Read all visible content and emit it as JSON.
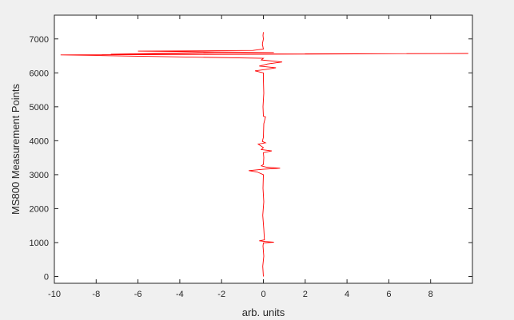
{
  "chart_data": {
    "type": "line",
    "title": "",
    "xlabel": "arb. units",
    "ylabel": "MS800 Measurement Points",
    "xlim": [
      -10,
      10
    ],
    "ylim": [
      -200,
      7700
    ],
    "grid": false,
    "x_ticks": [
      -10,
      -8,
      -6,
      -4,
      -2,
      0,
      2,
      4,
      6,
      8
    ],
    "y_ticks": [
      0,
      1000,
      2000,
      3000,
      4000,
      5000,
      6000,
      7000
    ],
    "series": [
      {
        "color": "#ff0000",
        "points": [
          [
            0.0,
            0
          ],
          [
            -0.03,
            300
          ],
          [
            0.02,
            600
          ],
          [
            -0.02,
            900
          ],
          [
            0.0,
            990
          ],
          [
            0.5,
            1010
          ],
          [
            0.1,
            1030
          ],
          [
            -0.2,
            1050
          ],
          [
            0.05,
            1080
          ],
          [
            0.02,
            1400
          ],
          [
            -0.03,
            1800
          ],
          [
            0.02,
            2200
          ],
          [
            -0.02,
            2600
          ],
          [
            0.0,
            3000
          ],
          [
            -0.3,
            3080
          ],
          [
            -0.7,
            3120
          ],
          [
            0.0,
            3160
          ],
          [
            0.8,
            3190
          ],
          [
            0.15,
            3220
          ],
          [
            -0.1,
            3260
          ],
          [
            0.0,
            3300
          ],
          [
            0.02,
            3500
          ],
          [
            0.0,
            3650
          ],
          [
            0.4,
            3700
          ],
          [
            -0.1,
            3740
          ],
          [
            0.0,
            3800
          ],
          [
            -0.25,
            3900
          ],
          [
            0.1,
            3940
          ],
          [
            -0.05,
            3980
          ],
          [
            0.0,
            4100
          ],
          [
            0.02,
            4500
          ],
          [
            0.1,
            4700
          ],
          [
            0.0,
            4720
          ],
          [
            -0.02,
            5000
          ],
          [
            0.02,
            5400
          ],
          [
            0.0,
            5800
          ],
          [
            0.0,
            6000
          ],
          [
            -0.4,
            6060
          ],
          [
            0.1,
            6100
          ],
          [
            0.6,
            6150
          ],
          [
            -0.2,
            6200
          ],
          [
            0.2,
            6260
          ],
          [
            0.9,
            6320
          ],
          [
            -0.1,
            6380
          ],
          [
            0.0,
            6430
          ],
          [
            -9.7,
            6530
          ],
          [
            9.8,
            6570
          ],
          [
            -7.3,
            6550
          ],
          [
            -2.0,
            6610
          ],
          [
            0.5,
            6600
          ],
          [
            -6.0,
            6640
          ],
          [
            -3.0,
            6650
          ],
          [
            -0.5,
            6660
          ],
          [
            0.0,
            6700
          ],
          [
            -0.05,
            6850
          ],
          [
            0.0,
            7000
          ],
          [
            -0.02,
            7100
          ],
          [
            0.0,
            7200
          ]
        ]
      }
    ]
  }
}
